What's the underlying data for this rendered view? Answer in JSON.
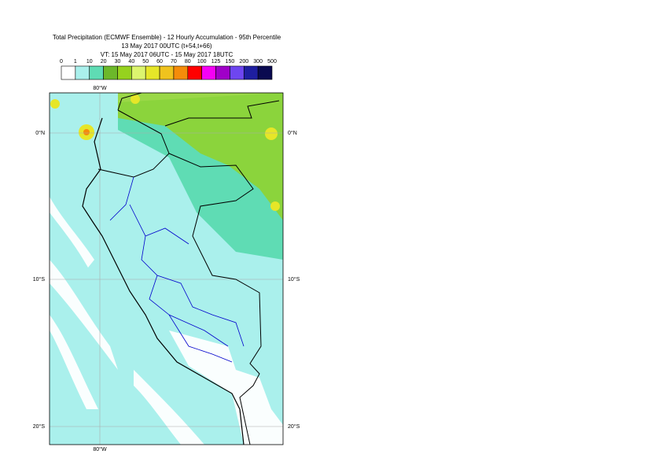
{
  "header": {
    "title": [
      "Total Precipitation (ECMWF Ensemble) - 12 Hourly Accumulation - 95th Percentile",
      "13 May 2017 00UTC (t+54,t+66)",
      "VT: 15 May 2017 06UTC - 15 May 2017 18UTC"
    ]
  },
  "legend": {
    "labels": [
      0,
      1,
      10,
      20,
      30,
      40,
      50,
      60,
      70,
      80,
      100,
      125,
      150,
      200,
      300,
      500
    ],
    "colors": [
      "#ffffff",
      "#aaf0ec",
      "#5fdcb4",
      "#6cb82a",
      "#96d21e",
      "#dcf56e",
      "#e6e628",
      "#f0c31e",
      "#f58c0a",
      "#ff0000",
      "#f500f5",
      "#a000c8",
      "#6e46f0",
      "#1e1ea0",
      "#0a0a50"
    ]
  },
  "map": {
    "lon_labels": [
      "80°W",
      "80°W"
    ],
    "lat_labels": [
      "0°N",
      "10°S",
      "20°S",
      "0°N",
      "10°S",
      "20°S"
    ]
  }
}
